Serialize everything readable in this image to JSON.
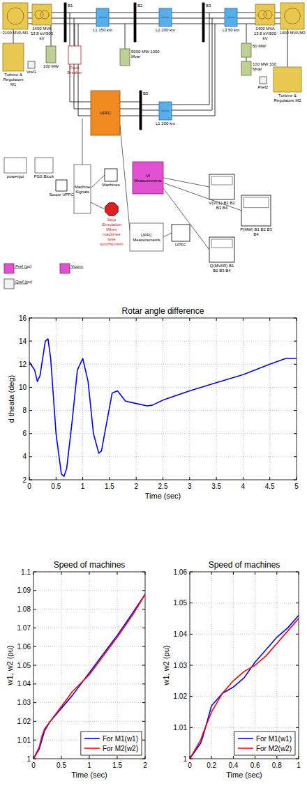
{
  "diagram": {
    "nodes": [
      {
        "label": "2100 MVA M1"
      },
      {
        "label": "1400 MVA 13.8 kV/500 kV"
      },
      {
        "label": "B1"
      },
      {
        "label": "L1 150 km"
      },
      {
        "label": "B2"
      },
      {
        "label": "L2 200 km"
      },
      {
        "label": "B3"
      },
      {
        "label": "L3 50 km"
      },
      {
        "label": "1400 MVA 13.8 kV/500 kV"
      },
      {
        "label": "1400 MVA M2"
      },
      {
        "label": "Turbine & Regulators M1"
      },
      {
        "label": "Vref1"
      },
      {
        "label": "100 MW"
      },
      {
        "label": "Fault Breaker"
      },
      {
        "label": "5000 MW 1000 Mvar"
      },
      {
        "label": "50 MW"
      },
      {
        "label": "100 MW 100 Mvar"
      },
      {
        "label": "Turbine & Regulators M2"
      },
      {
        "label": "Pref2"
      },
      {
        "label": "UPFC"
      },
      {
        "label": "B5"
      },
      {
        "label": "L1 200 km"
      },
      {
        "label": "powergui"
      },
      {
        "label": "PSS Block"
      },
      {
        "label": "Scope UPFC"
      },
      {
        "label": "Machine Signals"
      },
      {
        "label": "Machines"
      },
      {
        "label": "Stop Simulation When machines lose synchronism"
      },
      {
        "label": "VI Measurements"
      },
      {
        "label": "UPFC Measurements"
      },
      {
        "label": "UPFC"
      },
      {
        "label": "V(VCL) B1 B2 B3 B4"
      },
      {
        "label": "P(MW) B1 B2 B3 B4"
      },
      {
        "label": "Q(MVAR) B1 B2 B3 B4"
      },
      {
        "label": "Pref (pu)"
      },
      {
        "label": "Qref (pu)"
      },
      {
        "label": "Vconv"
      }
    ]
  },
  "chart_data": [
    {
      "type": "line",
      "title": "Rotar angle difference",
      "x_label": "Time (sec)",
      "y_label": "d theata (deg)",
      "x": [
        0,
        0.1,
        0.15,
        0.2,
        0.3,
        0.35,
        0.4,
        0.5,
        0.6,
        0.65,
        0.7,
        0.8,
        0.9,
        1,
        1.1,
        1.2,
        1.3,
        1.35,
        1.45,
        1.55,
        1.65,
        1.8,
        2,
        2.2,
        2.3,
        2.5,
        3,
        3.5,
        4,
        4.5,
        4.8,
        5
      ],
      "values": [
        12.2,
        11.5,
        10.5,
        11,
        14,
        14.2,
        12.5,
        6,
        2.5,
        2.3,
        3,
        7,
        11.5,
        12.5,
        10.5,
        6,
        4.3,
        4.5,
        7,
        9.5,
        9.7,
        8.8,
        8.6,
        8.4,
        8.45,
        8.9,
        9.7,
        10.4,
        11.1,
        12,
        12.5,
        12.5
      ],
      "color": "#0000ff",
      "xlim": [
        0,
        5
      ],
      "xticks": [
        0,
        0.5,
        1,
        1.5,
        2,
        2.5,
        3,
        3.5,
        4,
        4.5,
        5
      ],
      "ylim": [
        2,
        16
      ],
      "yticks": [
        2,
        4,
        6,
        8,
        10,
        12,
        14,
        16
      ],
      "grid": true
    },
    {
      "type": "line",
      "title": "Speed of machines",
      "x_label": "Time (sec)",
      "y_label": "w1, w2 (pu)",
      "x": [
        0,
        0.1,
        0.15,
        0.2,
        0.3,
        0.5,
        0.7,
        1,
        1.3,
        1.5,
        1.8,
        2
      ],
      "series": [
        {
          "name": "For M1(w1)",
          "color": "#0000ff",
          "values": [
            1,
            1.005,
            1.01,
            1.015,
            1.02,
            1.027,
            1.034,
            1.046,
            1.058,
            1.066,
            1.079,
            1.088
          ]
        },
        {
          "name": "For M2(w2)",
          "color": "#ff0000",
          "values": [
            1,
            1.006,
            1.012,
            1.016,
            1.02,
            1.028,
            1.036,
            1.045,
            1.057,
            1.065,
            1.078,
            1.088
          ]
        }
      ],
      "xlim": [
        0,
        2
      ],
      "xticks": [
        0,
        0.5,
        1,
        1.5,
        2
      ],
      "ylim": [
        1,
        1.1
      ],
      "yticks": [
        1,
        1.01,
        1.02,
        1.03,
        1.04,
        1.05,
        1.06,
        1.07,
        1.08,
        1.09,
        1.1
      ],
      "grid": true,
      "legend": "lower right"
    },
    {
      "type": "line",
      "title": "Speed of machines",
      "x_label": "Time (sec)",
      "y_label": "w1, w2 (pu)",
      "x": [
        0,
        0.1,
        0.12,
        0.2,
        0.3,
        0.4,
        0.5,
        0.6,
        0.7,
        0.8,
        0.9,
        1
      ],
      "series": [
        {
          "name": "For M1(w1)",
          "color": "#0000ff",
          "values": [
            1,
            1.005,
            1.007,
            1.017,
            1.021,
            1.023,
            1.026,
            1.031,
            1.035,
            1.039,
            1.042,
            1.046
          ]
        },
        {
          "name": "For M2(w2)",
          "color": "#ff0000",
          "values": [
            1,
            1.006,
            1.008,
            1.015,
            1.021,
            1.025,
            1.028,
            1.03,
            1.033,
            1.037,
            1.041,
            1.045
          ]
        }
      ],
      "xlim": [
        0,
        1
      ],
      "xticks": [
        0,
        0.2,
        0.4,
        0.6,
        0.8,
        1
      ],
      "ylim": [
        1,
        1.06
      ],
      "yticks": [
        1,
        1.01,
        1.02,
        1.03,
        1.04,
        1.05,
        1.06
      ],
      "grid": true,
      "legend": "lower right"
    }
  ]
}
